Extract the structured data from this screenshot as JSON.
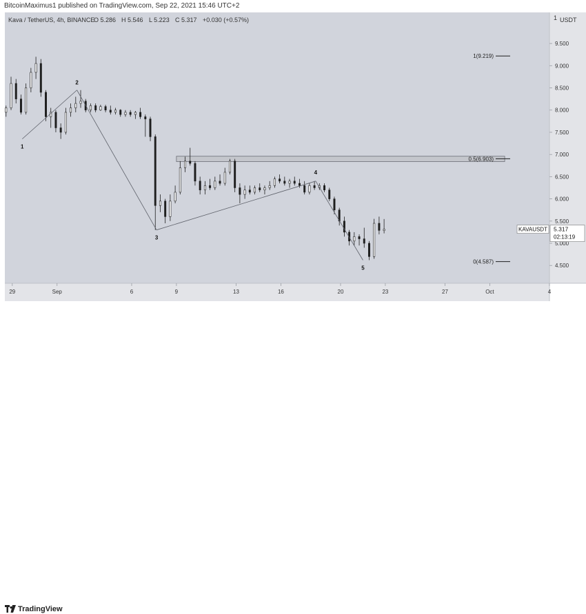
{
  "header": {
    "published_text": "BitcoinMaximus1 published on TradingView.com, Sep 22, 2021 15:46 UTC+2"
  },
  "footer": {
    "brand": "TradingView"
  },
  "chart_data": {
    "type": "candlestick",
    "symbol_line": {
      "symbol": "Kava / TetherUS, 4h, BINANCE",
      "open": "O 5.286",
      "high": "H 5.546",
      "low": "L 5.223",
      "close": "C 5.317",
      "change": "+0.030 (+0.57%)"
    },
    "currency_label": "USDT",
    "y_axis": {
      "range": [
        4.1,
        10.2
      ],
      "ticks": [
        4.5,
        5.0,
        5.5,
        6.0,
        6.5,
        7.0,
        7.5,
        8.0,
        8.5,
        9.0,
        9.5
      ],
      "tick_labels": [
        "4.500",
        "5.000",
        "5.500",
        "6.000",
        "6.500",
        "7.000",
        "7.500",
        "8.000",
        "8.500",
        "9.000",
        "9.500"
      ],
      "top_label": "1"
    },
    "x_axis": {
      "range": [
        "2021-08-28T12:00",
        "2021-10-04T00:00"
      ],
      "ticks": [
        {
          "date": "2021-08-29",
          "label": "29"
        },
        {
          "date": "2021-09-01",
          "label": "Sep"
        },
        {
          "date": "2021-09-06",
          "label": "6"
        },
        {
          "date": "2021-09-09",
          "label": "9"
        },
        {
          "date": "2021-09-13",
          "label": "13"
        },
        {
          "date": "2021-09-16",
          "label": "16"
        },
        {
          "date": "2021-09-20",
          "label": "20"
        },
        {
          "date": "2021-09-23",
          "label": "23"
        },
        {
          "date": "2021-09-27",
          "label": "27"
        },
        {
          "date": "2021-09-30",
          "label": "Oct"
        },
        {
          "date": "2021-10-04",
          "label": "4"
        }
      ]
    },
    "grid": false,
    "price_badge": {
      "symbol": "KAVAUSDT",
      "price": "5.317",
      "countdown": "02:13:19",
      "value": 5.317
    },
    "fib_levels": [
      {
        "label": "1(9.219)",
        "value": 9.219
      },
      {
        "label": "0.5(6.903)",
        "value": 6.903
      },
      {
        "label": "0(4.587)",
        "value": 4.587
      }
    ],
    "resistance_zone": {
      "from": "2021-09-09T00:00",
      "to": "2021-10-01T00:00",
      "low": 6.84,
      "high": 6.96
    },
    "wave_points": [
      {
        "label": "1",
        "date": "2021-08-29T16:00",
        "value": 7.35
      },
      {
        "label": "2",
        "date": "2021-09-02T08:00",
        "value": 8.45
      },
      {
        "label": "3",
        "date": "2021-09-07T16:00",
        "value": 5.3
      },
      {
        "label": "4",
        "date": "2021-09-18T08:00",
        "value": 6.4
      },
      {
        "label": "5",
        "date": "2021-09-21T12:00",
        "value": 4.62
      }
    ],
    "candles": [
      {
        "t": "2021-08-28T12:00",
        "o": 7.95,
        "h": 8.1,
        "l": 7.85,
        "c": 8.05
      },
      {
        "t": "2021-08-28T20:00",
        "o": 8.05,
        "h": 8.75,
        "l": 8.0,
        "c": 8.6
      },
      {
        "t": "2021-08-29T04:00",
        "o": 8.6,
        "h": 8.7,
        "l": 8.15,
        "c": 8.25
      },
      {
        "t": "2021-08-29T12:00",
        "o": 8.25,
        "h": 8.35,
        "l": 7.9,
        "c": 7.95
      },
      {
        "t": "2021-08-29T20:00",
        "o": 7.95,
        "h": 8.6,
        "l": 7.9,
        "c": 8.5
      },
      {
        "t": "2021-08-30T04:00",
        "o": 8.5,
        "h": 8.95,
        "l": 8.4,
        "c": 8.85
      },
      {
        "t": "2021-08-30T12:00",
        "o": 8.85,
        "h": 9.2,
        "l": 8.7,
        "c": 9.05
      },
      {
        "t": "2021-08-30T20:00",
        "o": 9.05,
        "h": 9.15,
        "l": 8.3,
        "c": 8.4
      },
      {
        "t": "2021-08-31T04:00",
        "o": 8.4,
        "h": 8.45,
        "l": 7.75,
        "c": 7.85
      },
      {
        "t": "2021-08-31T12:00",
        "o": 7.85,
        "h": 8.05,
        "l": 7.6,
        "c": 7.95
      },
      {
        "t": "2021-08-31T20:00",
        "o": 7.95,
        "h": 8.0,
        "l": 7.5,
        "c": 7.6
      },
      {
        "t": "2021-09-01T04:00",
        "o": 7.6,
        "h": 7.7,
        "l": 7.35,
        "c": 7.5
      },
      {
        "t": "2021-09-01T12:00",
        "o": 7.5,
        "h": 8.05,
        "l": 7.45,
        "c": 7.95
      },
      {
        "t": "2021-09-01T20:00",
        "o": 7.95,
        "h": 8.15,
        "l": 7.85,
        "c": 8.05
      },
      {
        "t": "2021-09-02T04:00",
        "o": 8.05,
        "h": 8.3,
        "l": 7.95,
        "c": 8.15
      },
      {
        "t": "2021-09-02T12:00",
        "o": 8.15,
        "h": 8.45,
        "l": 8.05,
        "c": 8.2
      },
      {
        "t": "2021-09-02T20:00",
        "o": 8.2,
        "h": 8.25,
        "l": 7.95,
        "c": 8.0
      },
      {
        "t": "2021-09-03T04:00",
        "o": 8.0,
        "h": 8.15,
        "l": 7.95,
        "c": 8.1
      },
      {
        "t": "2021-09-03T12:00",
        "o": 8.1,
        "h": 8.15,
        "l": 7.95,
        "c": 8.0
      },
      {
        "t": "2021-09-03T20:00",
        "o": 8.0,
        "h": 8.12,
        "l": 7.98,
        "c": 8.08
      },
      {
        "t": "2021-09-04T04:00",
        "o": 8.08,
        "h": 8.12,
        "l": 7.95,
        "c": 8.0
      },
      {
        "t": "2021-09-04T12:00",
        "o": 8.0,
        "h": 8.1,
        "l": 7.9,
        "c": 7.95
      },
      {
        "t": "2021-09-04T20:00",
        "o": 7.95,
        "h": 8.05,
        "l": 7.9,
        "c": 8.0
      },
      {
        "t": "2021-09-05T04:00",
        "o": 8.0,
        "h": 8.02,
        "l": 7.85,
        "c": 7.9
      },
      {
        "t": "2021-09-05T12:00",
        "o": 7.9,
        "h": 8.0,
        "l": 7.85,
        "c": 7.95
      },
      {
        "t": "2021-09-05T20:00",
        "o": 7.95,
        "h": 8.0,
        "l": 7.85,
        "c": 7.9
      },
      {
        "t": "2021-09-06T04:00",
        "o": 7.9,
        "h": 7.98,
        "l": 7.8,
        "c": 7.95
      },
      {
        "t": "2021-09-06T12:00",
        "o": 7.95,
        "h": 8.05,
        "l": 7.8,
        "c": 7.85
      },
      {
        "t": "2021-09-06T20:00",
        "o": 7.85,
        "h": 7.9,
        "l": 7.4,
        "c": 7.8
      },
      {
        "t": "2021-09-07T04:00",
        "o": 7.8,
        "h": 7.85,
        "l": 7.3,
        "c": 7.4
      },
      {
        "t": "2021-09-07T12:00",
        "o": 7.4,
        "h": 7.45,
        "l": 5.3,
        "c": 5.85
      },
      {
        "t": "2021-09-07T20:00",
        "o": 5.85,
        "h": 6.1,
        "l": 5.7,
        "c": 5.95
      },
      {
        "t": "2021-09-08T04:00",
        "o": 5.95,
        "h": 6.0,
        "l": 5.45,
        "c": 5.6
      },
      {
        "t": "2021-09-08T12:00",
        "o": 5.6,
        "h": 6.1,
        "l": 5.5,
        "c": 5.95
      },
      {
        "t": "2021-09-08T20:00",
        "o": 5.95,
        "h": 6.3,
        "l": 5.9,
        "c": 6.15
      },
      {
        "t": "2021-09-09T04:00",
        "o": 6.15,
        "h": 6.85,
        "l": 6.1,
        "c": 6.7
      },
      {
        "t": "2021-09-09T12:00",
        "o": 6.7,
        "h": 6.95,
        "l": 6.6,
        "c": 6.85
      },
      {
        "t": "2021-09-09T20:00",
        "o": 6.85,
        "h": 7.15,
        "l": 6.75,
        "c": 6.8
      },
      {
        "t": "2021-09-10T04:00",
        "o": 6.8,
        "h": 6.85,
        "l": 6.3,
        "c": 6.4
      },
      {
        "t": "2021-09-10T12:00",
        "o": 6.4,
        "h": 6.5,
        "l": 6.1,
        "c": 6.2
      },
      {
        "t": "2021-09-10T20:00",
        "o": 6.2,
        "h": 6.4,
        "l": 6.1,
        "c": 6.3
      },
      {
        "t": "2021-09-11T04:00",
        "o": 6.3,
        "h": 6.45,
        "l": 6.2,
        "c": 6.25
      },
      {
        "t": "2021-09-11T12:00",
        "o": 6.25,
        "h": 6.5,
        "l": 6.2,
        "c": 6.4
      },
      {
        "t": "2021-09-11T20:00",
        "o": 6.4,
        "h": 6.55,
        "l": 6.3,
        "c": 6.35
      },
      {
        "t": "2021-09-12T04:00",
        "o": 6.35,
        "h": 6.7,
        "l": 6.3,
        "c": 6.6
      },
      {
        "t": "2021-09-12T12:00",
        "o": 6.6,
        "h": 6.9,
        "l": 6.55,
        "c": 6.85
      },
      {
        "t": "2021-09-12T20:00",
        "o": 6.85,
        "h": 6.9,
        "l": 6.15,
        "c": 6.25
      },
      {
        "t": "2021-09-13T04:00",
        "o": 6.25,
        "h": 6.35,
        "l": 5.9,
        "c": 6.1
      },
      {
        "t": "2021-09-13T12:00",
        "o": 6.1,
        "h": 6.3,
        "l": 6.0,
        "c": 6.2
      },
      {
        "t": "2021-09-13T20:00",
        "o": 6.2,
        "h": 6.3,
        "l": 6.1,
        "c": 6.15
      },
      {
        "t": "2021-09-14T04:00",
        "o": 6.15,
        "h": 6.3,
        "l": 6.1,
        "c": 6.25
      },
      {
        "t": "2021-09-14T12:00",
        "o": 6.25,
        "h": 6.35,
        "l": 6.15,
        "c": 6.2
      },
      {
        "t": "2021-09-14T20:00",
        "o": 6.2,
        "h": 6.3,
        "l": 6.1,
        "c": 6.25
      },
      {
        "t": "2021-09-15T04:00",
        "o": 6.25,
        "h": 6.4,
        "l": 6.2,
        "c": 6.3
      },
      {
        "t": "2021-09-15T12:00",
        "o": 6.3,
        "h": 6.5,
        "l": 6.25,
        "c": 6.45
      },
      {
        "t": "2021-09-15T20:00",
        "o": 6.45,
        "h": 6.55,
        "l": 6.35,
        "c": 6.4
      },
      {
        "t": "2021-09-16T04:00",
        "o": 6.4,
        "h": 6.5,
        "l": 6.3,
        "c": 6.35
      },
      {
        "t": "2021-09-16T12:00",
        "o": 6.35,
        "h": 6.45,
        "l": 6.25,
        "c": 6.4
      },
      {
        "t": "2021-09-16T20:00",
        "o": 6.4,
        "h": 6.5,
        "l": 6.3,
        "c": 6.35
      },
      {
        "t": "2021-09-17T04:00",
        "o": 6.35,
        "h": 6.45,
        "l": 6.25,
        "c": 6.3
      },
      {
        "t": "2021-09-17T12:00",
        "o": 6.3,
        "h": 6.4,
        "l": 6.1,
        "c": 6.15
      },
      {
        "t": "2021-09-17T20:00",
        "o": 6.15,
        "h": 6.35,
        "l": 6.1,
        "c": 6.3
      },
      {
        "t": "2021-09-18T04:00",
        "o": 6.3,
        "h": 6.4,
        "l": 6.2,
        "c": 6.25
      },
      {
        "t": "2021-09-18T12:00",
        "o": 6.25,
        "h": 6.35,
        "l": 6.2,
        "c": 6.3
      },
      {
        "t": "2021-09-18T20:00",
        "o": 6.3,
        "h": 6.35,
        "l": 6.15,
        "c": 6.2
      },
      {
        "t": "2021-09-19T04:00",
        "o": 6.2,
        "h": 6.25,
        "l": 5.95,
        "c": 6.0
      },
      {
        "t": "2021-09-19T12:00",
        "o": 6.0,
        "h": 6.05,
        "l": 5.65,
        "c": 5.75
      },
      {
        "t": "2021-09-19T20:00",
        "o": 5.75,
        "h": 5.8,
        "l": 5.4,
        "c": 5.5
      },
      {
        "t": "2021-09-20T04:00",
        "o": 5.5,
        "h": 5.6,
        "l": 5.15,
        "c": 5.25
      },
      {
        "t": "2021-09-20T12:00",
        "o": 5.25,
        "h": 5.3,
        "l": 4.95,
        "c": 5.05
      },
      {
        "t": "2021-09-20T20:00",
        "o": 5.05,
        "h": 5.25,
        "l": 4.95,
        "c": 5.15
      },
      {
        "t": "2021-09-21T04:00",
        "o": 5.15,
        "h": 5.2,
        "l": 4.95,
        "c": 5.1
      },
      {
        "t": "2021-09-21T12:00",
        "o": 5.1,
        "h": 5.35,
        "l": 4.9,
        "c": 5.0
      },
      {
        "t": "2021-09-21T20:00",
        "o": 5.0,
        "h": 5.05,
        "l": 4.62,
        "c": 4.7
      },
      {
        "t": "2021-09-22T04:00",
        "o": 4.7,
        "h": 5.55,
        "l": 4.65,
        "c": 5.45
      },
      {
        "t": "2021-09-22T12:00",
        "o": 5.45,
        "h": 5.6,
        "l": 5.2,
        "c": 5.29
      },
      {
        "t": "2021-09-22T20:00",
        "o": 5.286,
        "h": 5.546,
        "l": 5.223,
        "c": 5.317
      }
    ]
  }
}
